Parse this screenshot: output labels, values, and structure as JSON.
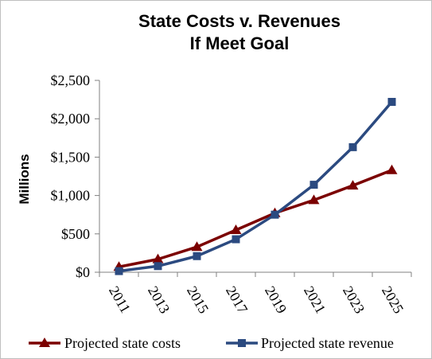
{
  "chart_data": {
    "type": "line",
    "title": "State Costs v. Revenues",
    "subtitle": "If Meet Goal",
    "xlabel": "",
    "ylabel": "Millions",
    "categories": [
      "2011",
      "2013",
      "2015",
      "2017",
      "2019",
      "2021",
      "2023",
      "2025"
    ],
    "ylim": [
      0,
      2500
    ],
    "yticks": [
      0,
      500,
      1000,
      1500,
      2000,
      2500
    ],
    "ytick_labels": [
      "$0",
      "$500",
      "$1,000",
      "$1,500",
      "$2,000",
      "$2,500"
    ],
    "grid": false,
    "legend_position": "bottom",
    "series": [
      {
        "name": "Projected state costs",
        "values": [
          70,
          170,
          330,
          550,
          770,
          940,
          1130,
          1330
        ],
        "color": "#7b0000",
        "marker": "triangle"
      },
      {
        "name": "Projected state revenue",
        "values": [
          15,
          80,
          210,
          430,
          750,
          1140,
          1630,
          2220
        ],
        "color": "#2b4a80",
        "marker": "square"
      }
    ]
  }
}
